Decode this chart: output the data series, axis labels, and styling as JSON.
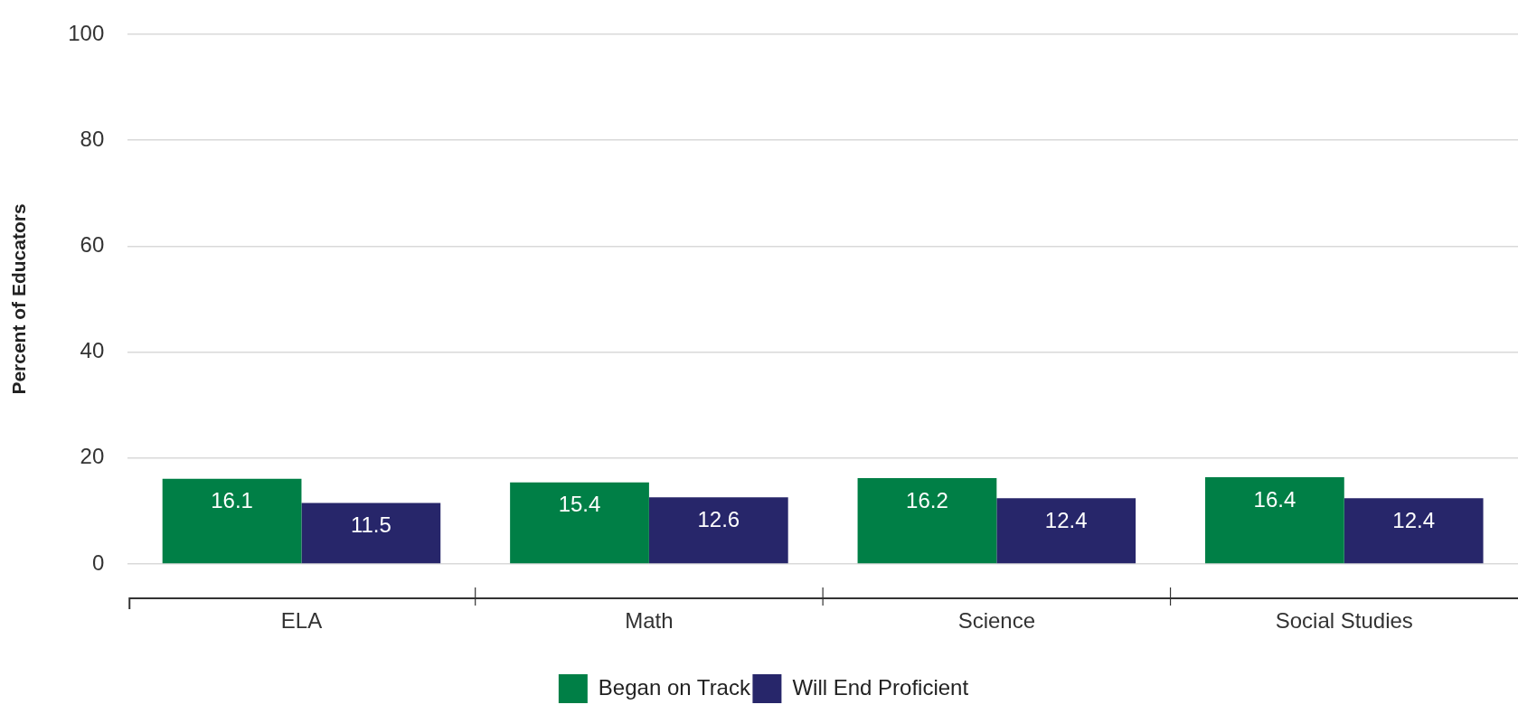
{
  "chart_data": {
    "type": "bar",
    "categories": [
      "ELA",
      "Math",
      "Science",
      "Social Studies"
    ],
    "series": [
      {
        "name": "Began on Track",
        "color": "#007f46",
        "values": [
          16.1,
          15.4,
          16.2,
          16.4
        ]
      },
      {
        "name": "Will End Proficient",
        "color": "#27266a",
        "values": [
          11.5,
          12.6,
          12.4,
          12.4
        ]
      }
    ],
    "ylabel": "Percent of Educators",
    "ylim": [
      0,
      100
    ],
    "yticks": [
      0,
      20,
      40,
      60,
      80,
      100
    ],
    "grid": "y",
    "legend": "bottom",
    "data_labels": true
  }
}
